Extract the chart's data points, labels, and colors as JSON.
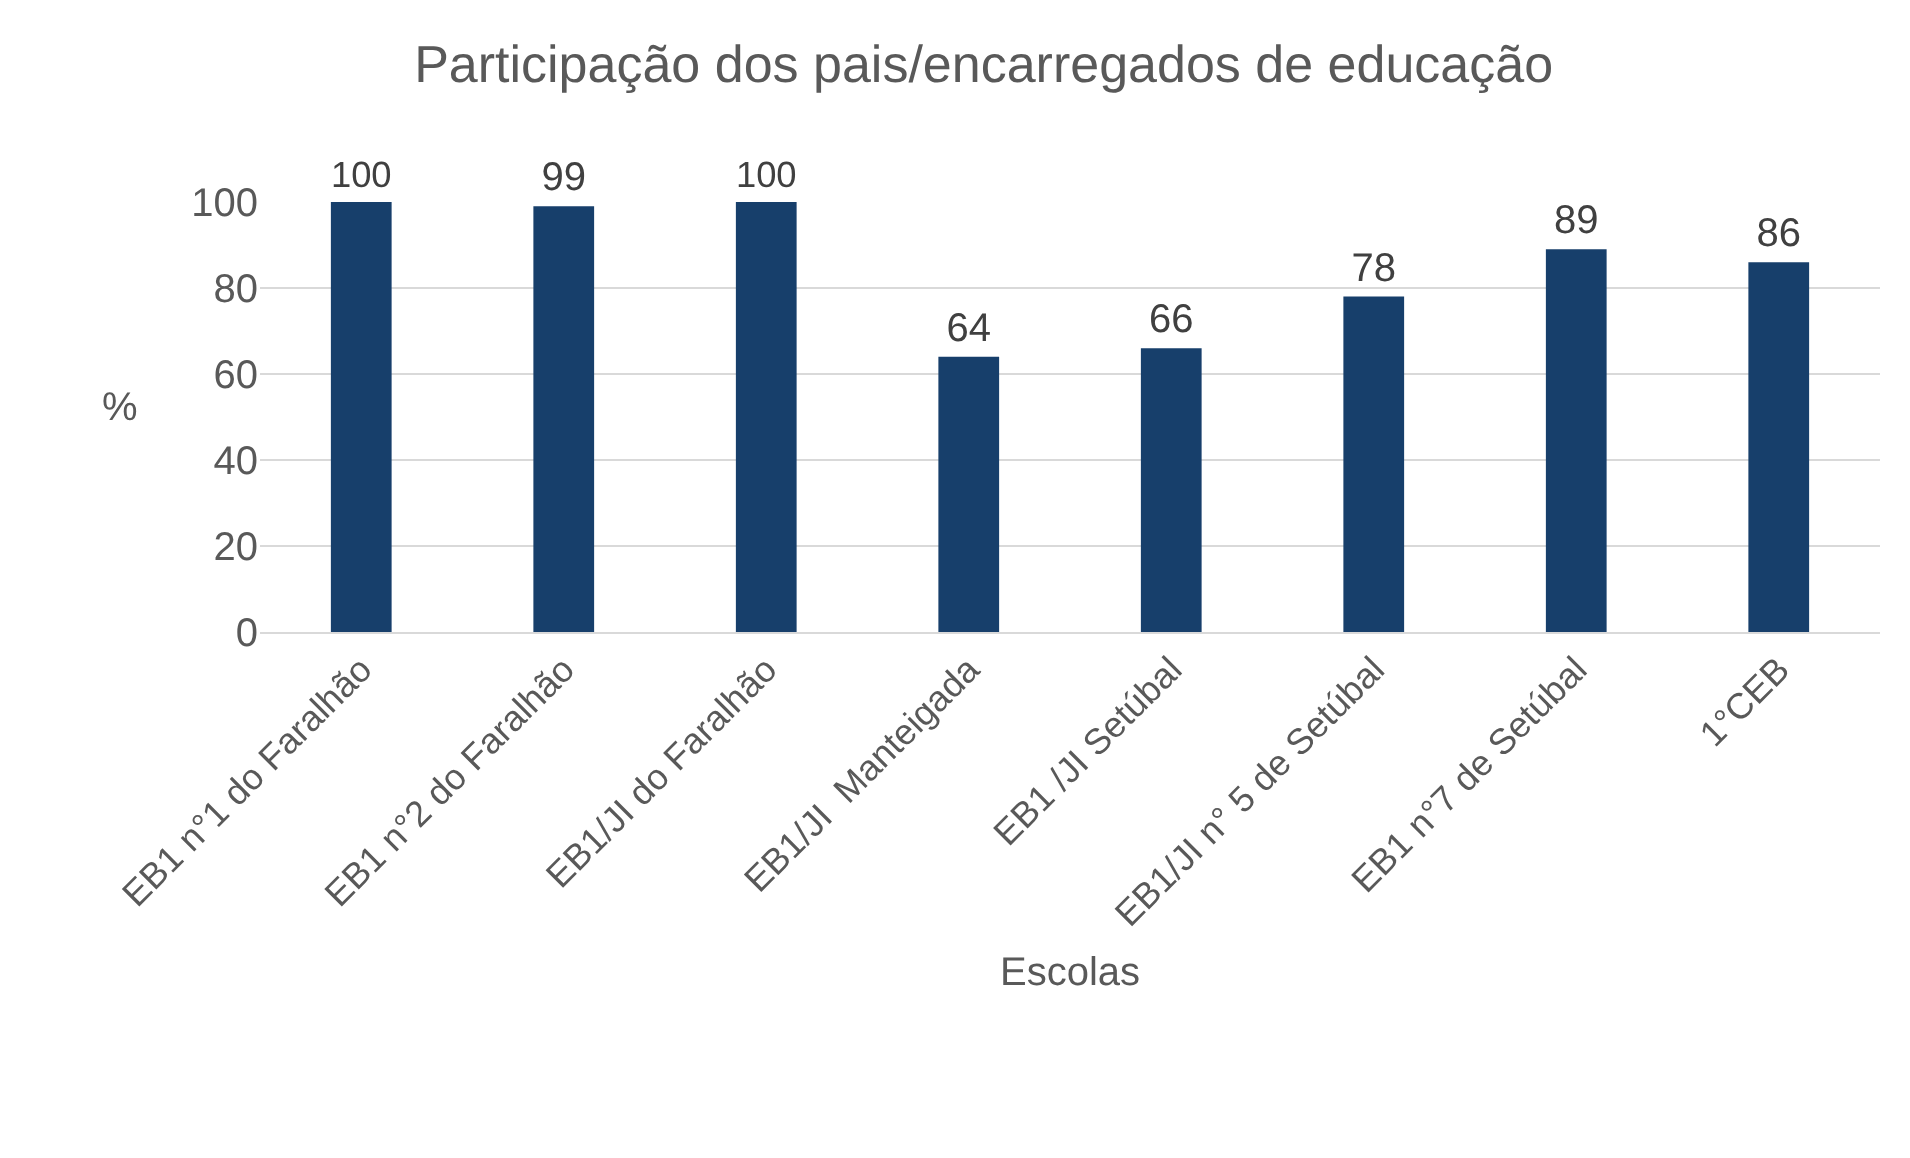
{
  "chart_data": {
    "type": "bar",
    "title": "Participação dos pais/encarregados de educação",
    "xlabel": "Escolas",
    "ylabel": "%",
    "categories": [
      "EB1 n°1 do Faralhão",
      "EB1 n°2 do Faralhão",
      "EB1/JI do Faralhão",
      "EB1/JI  Manteigada",
      "EB1 /JI Setúbal",
      "EB1/JI n° 5 de Setúbal",
      "EB1 n°7 de Setúbal",
      "1°CEB"
    ],
    "values": [
      100,
      99,
      100,
      64,
      66,
      78,
      89,
      86
    ],
    "color": "#173f6b",
    "ylim": [
      0,
      100
    ],
    "yticks": [
      0,
      20,
      40,
      60,
      80,
      100
    ],
    "grid": "y",
    "data_labels": true
  }
}
